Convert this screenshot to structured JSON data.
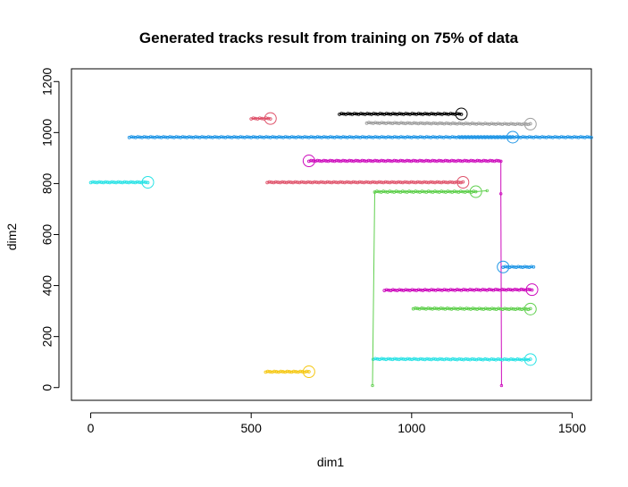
{
  "chart_data": {
    "type": "scatter",
    "title": "Generated tracks result from training on 75% of data",
    "xlabel": "dim1",
    "ylabel": "dim2",
    "xlim": [
      -60,
      1560
    ],
    "ylim": [
      -50,
      1250
    ],
    "xticks": [
      0,
      500,
      1000,
      1500
    ],
    "yticks": [
      0,
      200,
      400,
      600,
      800,
      1000,
      1200
    ],
    "grid": false,
    "legend": "none",
    "tracks": [
      {
        "color": "#000000",
        "segments": [
          [
            775,
            1073,
            1155,
            1073
          ]
        ],
        "connectors": [],
        "end": [
          1155,
          1073
        ]
      },
      {
        "color": "#9e9e9e",
        "segments": [
          [
            860,
            1038,
            1370,
            1033
          ]
        ],
        "connectors": [],
        "end": [
          1370,
          1033
        ]
      },
      {
        "color": "#df536b",
        "segments": [
          [
            500,
            1055,
            560,
            1055
          ]
        ],
        "connectors": [],
        "end": [
          560,
          1055
        ]
      },
      {
        "color": "#2297e6",
        "segments": [
          [
            120,
            982,
            1560,
            982
          ],
          [
            1150,
            982,
            1315,
            982
          ]
        ],
        "connectors": [],
        "end": [
          1315,
          982
        ]
      },
      {
        "color": "#cd0bbc",
        "segments": [
          [
            680,
            889,
            1278,
            889
          ],
          [
            915,
            382,
            1375,
            384
          ]
        ],
        "connectors": [
          [
            1278,
            889,
            1278,
            760
          ],
          [
            1278,
            760,
            1280,
            8
          ]
        ],
        "end": [
          680,
          889
        ],
        "end2": [
          1375,
          384
        ]
      },
      {
        "color": "#28e2e5",
        "segments": [
          [
            0,
            805,
            178,
            805
          ],
          [
            880,
            112,
            1370,
            110
          ]
        ],
        "connectors": [],
        "end": [
          178,
          805
        ],
        "end2": [
          1370,
          110
        ]
      },
      {
        "color": "#df536b",
        "segments": [
          [
            550,
            805,
            1160,
            805
          ]
        ],
        "connectors": [],
        "end": [
          1160,
          805
        ]
      },
      {
        "color": "#61d04f",
        "segments": [
          [
            885,
            768,
            1200,
            768
          ],
          [
            1005,
            310,
            1370,
            308
          ]
        ],
        "connectors": [
          [
            1200,
            768,
            1235,
            772
          ],
          [
            885,
            768,
            878,
            8
          ]
        ],
        "end": [
          1200,
          768
        ],
        "end2": [
          1370,
          308
        ]
      },
      {
        "color": "#2297e6",
        "segments": [
          [
            1285,
            473,
            1380,
            473
          ]
        ],
        "connectors": [],
        "end": [
          1285,
          473
        ]
      },
      {
        "color": "#f5c710",
        "segments": [
          [
            545,
            62,
            680,
            62
          ]
        ],
        "connectors": [],
        "end": [
          680,
          62
        ]
      }
    ]
  }
}
